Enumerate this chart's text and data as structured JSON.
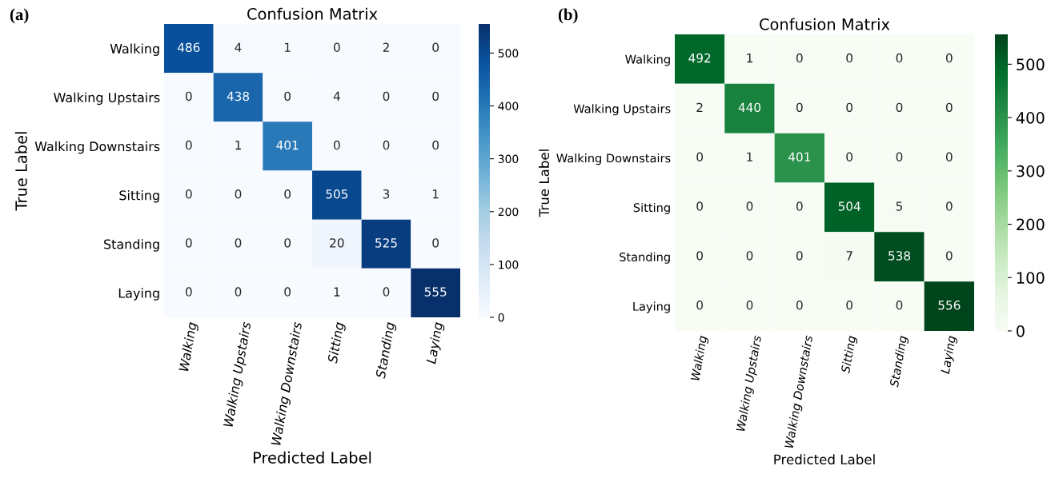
{
  "chart_data": [
    {
      "type": "heatmap",
      "title": "Confusion Matrix",
      "xlabel": "Predicted Label",
      "ylabel": "True Label",
      "annotations": [
        "(a)"
      ],
      "categories": [
        "Walking",
        "Walking Upstairs",
        "Walking Downstairs",
        "Sitting",
        "Standing",
        "Laying"
      ],
      "y_categories": [
        "Walking",
        "Walking Upstairs",
        "Walking Downstairs",
        "Sitting",
        "Standing",
        "Laying"
      ],
      "cells": [
        [
          486,
          4,
          1,
          0,
          2,
          0
        ],
        [
          0,
          438,
          0,
          4,
          0,
          0
        ],
        [
          0,
          1,
          401,
          0,
          0,
          0
        ],
        [
          0,
          0,
          0,
          505,
          3,
          1
        ],
        [
          0,
          0,
          0,
          20,
          525,
          0
        ],
        [
          0,
          0,
          0,
          1,
          0,
          555
        ]
      ],
      "data_labels": true,
      "clim": [
        0,
        555
      ],
      "cticks": [
        0,
        100,
        200,
        300,
        400,
        500
      ],
      "colors": [
        "#f7fbff",
        "#deebf7",
        "#c6dbef",
        "#9ecae1",
        "#6baed6",
        "#4292c6",
        "#2171b5",
        "#08519c",
        "#08306b"
      ]
    },
    {
      "type": "heatmap",
      "title": "Confusion Matrix",
      "xlabel": "Predicted Label",
      "ylabel": "True Label",
      "annotations": [
        "(b)"
      ],
      "categories": [
        "Walking",
        "Walking Upstairs",
        "Walking Downstairs",
        "Sitting",
        "Standing",
        "Laying"
      ],
      "y_categories": [
        "Walking",
        "Walking Upstairs",
        "Walking Downstairs",
        "Sitting",
        "Standing",
        "Laying"
      ],
      "cells": [
        [
          492,
          1,
          0,
          0,
          0,
          0
        ],
        [
          2,
          440,
          0,
          0,
          0,
          0
        ],
        [
          0,
          1,
          401,
          0,
          0,
          0
        ],
        [
          0,
          0,
          0,
          504,
          5,
          0
        ],
        [
          0,
          0,
          0,
          7,
          538,
          0
        ],
        [
          0,
          0,
          0,
          0,
          0,
          556
        ]
      ],
      "data_labels": true,
      "clim": [
        0,
        556
      ],
      "cticks": [
        0,
        100,
        200,
        300,
        400,
        500
      ],
      "colors": [
        "#f7fcf5",
        "#e5f5e0",
        "#c7e9c0",
        "#a1d99b",
        "#74c476",
        "#41ab5d",
        "#238b45",
        "#006d2c",
        "#00441b"
      ]
    }
  ]
}
